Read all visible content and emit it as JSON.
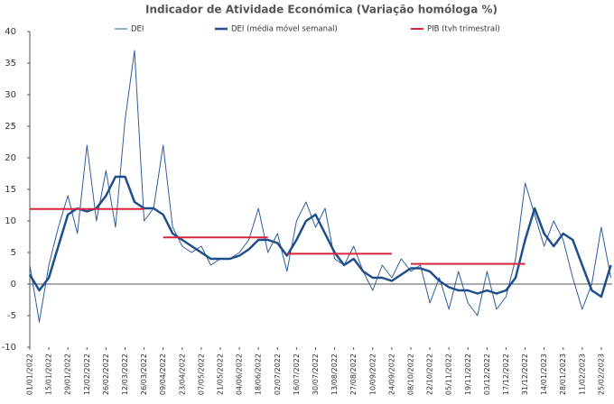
{
  "chart_data": {
    "type": "line",
    "title": "Indicador de Atividade Económica (Variação homóloga %)",
    "x": [
      "01/01/2022",
      "08/01/2022",
      "15/01/2022",
      "22/01/2022",
      "29/01/2022",
      "05/02/2022",
      "12/02/2022",
      "19/02/2022",
      "26/02/2022",
      "05/03/2022",
      "12/03/2022",
      "19/03/2022",
      "26/03/2022",
      "02/04/2022",
      "09/04/2022",
      "16/04/2022",
      "23/04/2022",
      "30/04/2022",
      "07/05/2022",
      "14/05/2022",
      "21/05/2022",
      "28/05/2022",
      "04/06/2022",
      "11/06/2022",
      "18/06/2022",
      "25/06/2022",
      "02/07/2022",
      "09/07/2022",
      "16/07/2022",
      "23/07/2022",
      "30/07/2022",
      "06/08/2022",
      "13/08/2022",
      "20/08/2022",
      "27/08/2022",
      "03/09/2022",
      "10/09/2022",
      "17/09/2022",
      "24/09/2022",
      "01/10/2022",
      "08/10/2022",
      "15/10/2022",
      "22/10/2022",
      "29/10/2022",
      "05/11/2022",
      "12/11/2022",
      "19/11/2022",
      "26/11/2022",
      "03/12/2022",
      "10/12/2022",
      "17/12/2022",
      "24/12/2022",
      "31/12/2022",
      "07/01/2023",
      "14/01/2023",
      "21/01/2023",
      "28/01/2023",
      "04/02/2023",
      "11/02/2023",
      "18/02/2023",
      "25/02/2023",
      "04/03/2023"
    ],
    "series": [
      {
        "name": "DEI",
        "color": "#2e5c9a",
        "width": 1,
        "values": [
          3,
          -6,
          3,
          9,
          14,
          8,
          22,
          10,
          18,
          9,
          26,
          37,
          10,
          12,
          22,
          9,
          6,
          5,
          6,
          3,
          4,
          4,
          5,
          7,
          12,
          5,
          8,
          2,
          10,
          13,
          9,
          12,
          4,
          3,
          6,
          2,
          -1,
          3,
          1,
          4,
          2,
          3,
          -3,
          1,
          -4,
          2,
          -3,
          -5,
          2,
          -4,
          -2,
          4,
          16,
          11,
          6,
          10,
          7,
          1,
          -4,
          0,
          9,
          1
        ]
      },
      {
        "name": "DEI (média móvel semanal)",
        "color": "#1f4e8c",
        "width": 2.5,
        "values": [
          1.5,
          -1,
          1,
          6,
          11,
          12,
          11.5,
          12,
          14,
          17,
          17,
          13,
          12,
          12,
          11,
          8,
          7,
          6,
          5,
          4,
          4,
          4,
          4.5,
          5.5,
          7,
          7,
          6.5,
          4.5,
          7,
          10,
          11,
          8,
          5,
          3,
          4,
          2,
          1,
          1,
          0.5,
          1.5,
          2.5,
          2.5,
          2,
          0.5,
          -0.5,
          -1,
          -1,
          -1.5,
          -1,
          -1.5,
          -1,
          1,
          7,
          12,
          8,
          6,
          8,
          7,
          3,
          -1,
          -2,
          3
        ]
      },
      {
        "name": "PIB (tvh trimestral)",
        "color": "#d9243c",
        "width": 2,
        "values": [
          11.9,
          11.9,
          11.9,
          11.9,
          11.9,
          11.9,
          11.9,
          11.9,
          11.9,
          11.9,
          11.9,
          11.9,
          11.9,
          null,
          7.4,
          7.4,
          7.4,
          7.4,
          7.4,
          7.4,
          7.4,
          7.4,
          7.4,
          7.4,
          7.4,
          7.4,
          null,
          4.8,
          4.8,
          4.8,
          4.8,
          4.8,
          4.8,
          4.8,
          4.8,
          4.8,
          4.8,
          4.8,
          4.8,
          null,
          3.2,
          3.2,
          3.2,
          3.2,
          3.2,
          3.2,
          3.2,
          3.2,
          3.2,
          3.2,
          3.2,
          3.2,
          3.2,
          null,
          null,
          null,
          null,
          null,
          null,
          null,
          null,
          null
        ]
      }
    ],
    "xlim": [
      "01/01/2022",
      "05/03/2023"
    ],
    "xticks": [
      "01/01/2022",
      "15/01/2022",
      "29/01/2022",
      "12/02/2022",
      "26/02/2022",
      "12/03/2022",
      "26/03/2022",
      "09/04/2022",
      "23/04/2022",
      "07/05/2022",
      "21/05/2022",
      "04/06/2022",
      "18/06/2022",
      "02/07/2022",
      "16/07/2022",
      "30/07/2022",
      "13/08/2022",
      "27/08/2022",
      "10/09/2022",
      "24/09/2022",
      "08/10/2022",
      "22/10/2022",
      "05/11/2022",
      "19/11/2022",
      "03/12/2022",
      "17/12/2022",
      "31/12/2022",
      "14/01/2023",
      "28/01/2023",
      "11/02/2023",
      "25/02/2023"
    ],
    "ylim": [
      -10,
      40
    ],
    "yticks": [
      -10,
      -5,
      0,
      5,
      10,
      15,
      20,
      25,
      30,
      35,
      40
    ],
    "grid": false
  }
}
